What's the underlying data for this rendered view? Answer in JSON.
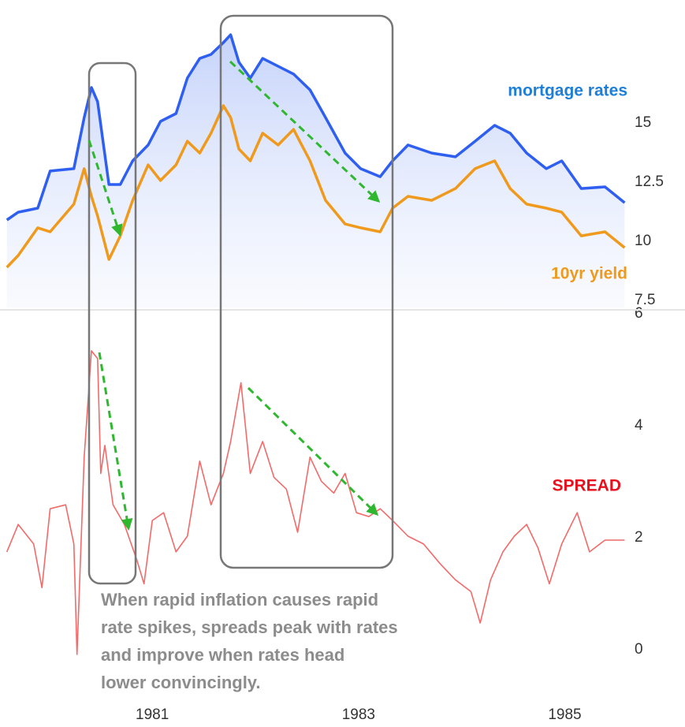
{
  "chart_data": [
    {
      "type": "line",
      "x": [
        1979.59,
        1979.7,
        1979.89,
        1980.01,
        1980.24,
        1980.34,
        1980.41,
        1980.47,
        1980.58,
        1980.69,
        1980.81,
        1980.96,
        1981.08,
        1981.23,
        1981.34,
        1981.46,
        1981.57,
        1981.69,
        1981.76,
        1981.84,
        1981.95,
        1982.07,
        1982.22,
        1982.37,
        1982.53,
        1982.68,
        1982.87,
        1983.02,
        1983.21,
        1983.33,
        1983.48,
        1983.71,
        1983.94,
        1984.13,
        1984.32,
        1984.47,
        1984.63,
        1984.82,
        1984.97,
        1985.16,
        1985.39,
        1985.58
      ],
      "series": [
        {
          "name": "mortgage rates",
          "color": "#2f5ff0",
          "values": [
            10.9,
            11.23,
            11.4,
            12.97,
            13.07,
            15.23,
            16.5,
            15.9,
            12.4,
            12.4,
            13.4,
            14.07,
            15.07,
            15.4,
            16.9,
            17.73,
            17.9,
            18.4,
            18.73,
            17.57,
            16.9,
            17.73,
            17.4,
            17.07,
            16.4,
            15.23,
            13.73,
            13.07,
            12.73,
            13.4,
            14.07,
            13.73,
            13.57,
            14.23,
            14.9,
            14.57,
            13.73,
            13.07,
            13.4,
            12.23,
            12.3,
            11.63
          ]
        },
        {
          "name": "10yr yield",
          "color": "#ef9a1c",
          "values": [
            8.9,
            9.4,
            10.57,
            10.4,
            11.57,
            13.07,
            11.9,
            11.07,
            9.23,
            10.23,
            11.73,
            13.23,
            12.57,
            13.23,
            14.23,
            13.73,
            14.57,
            15.73,
            15.23,
            13.9,
            13.4,
            14.57,
            14.07,
            14.73,
            13.4,
            11.73,
            10.73,
            10.57,
            10.4,
            11.4,
            11.9,
            11.73,
            12.23,
            13.07,
            13.4,
            12.23,
            11.57,
            11.4,
            11.23,
            10.23,
            10.4,
            9.73
          ]
        }
      ],
      "xlim": [
        1979.6,
        1985.6
      ],
      "ylim": [
        7.2,
        20.2
      ],
      "yticks": [
        7.5,
        10,
        12.5,
        15
      ],
      "grid": false
    },
    {
      "type": "line",
      "x": [
        1979.59,
        1979.7,
        1979.85,
        1979.93,
        1980.01,
        1980.16,
        1980.24,
        1980.27,
        1980.34,
        1980.41,
        1980.47,
        1980.5,
        1980.54,
        1980.62,
        1980.73,
        1980.85,
        1980.92,
        1981.0,
        1981.11,
        1981.23,
        1981.34,
        1981.46,
        1981.57,
        1981.69,
        1981.76,
        1981.86,
        1981.95,
        1982.07,
        1982.18,
        1982.3,
        1982.41,
        1982.53,
        1982.64,
        1982.76,
        1982.87,
        1982.98,
        1983.1,
        1983.21,
        1983.33,
        1983.48,
        1983.63,
        1983.79,
        1983.94,
        1984.09,
        1984.18,
        1984.28,
        1984.4,
        1984.51,
        1984.63,
        1984.74,
        1984.85,
        1984.97,
        1985.12,
        1985.24,
        1985.39,
        1985.58
      ],
      "series": [
        {
          "name": "SPREAD",
          "color": "#f26a6a",
          "values": [
            1.75,
            2.24,
            1.89,
            1.11,
            2.52,
            2.59,
            1.89,
            -0.08,
            3.44,
            5.34,
            5.2,
            3.15,
            3.65,
            2.59,
            2.24,
            1.61,
            1.18,
            2.31,
            2.45,
            1.75,
            2.03,
            3.37,
            2.59,
            3.15,
            3.72,
            4.77,
            3.15,
            3.72,
            3.08,
            2.87,
            2.1,
            3.44,
            3.01,
            2.8,
            3.15,
            2.45,
            2.38,
            2.52,
            2.31,
            2.03,
            1.89,
            1.54,
            1.25,
            1.04,
            0.48,
            1.25,
            1.75,
            2.03,
            2.24,
            1.82,
            1.18,
            1.89,
            2.45,
            1.75,
            1.96,
            1.96
          ]
        }
      ],
      "xlim": [
        1979.6,
        1985.6
      ],
      "ylim": [
        -0.8,
        6
      ],
      "xticks": [
        1981,
        1983,
        1985
      ],
      "yticks": [
        0,
        2,
        4,
        6
      ],
      "grid": false,
      "annotation": [
        "When rapid inflation causes rapid",
        "rate spikes, spreads peak with rates",
        "and improve when rates head",
        "lower convincingly."
      ]
    }
  ]
}
